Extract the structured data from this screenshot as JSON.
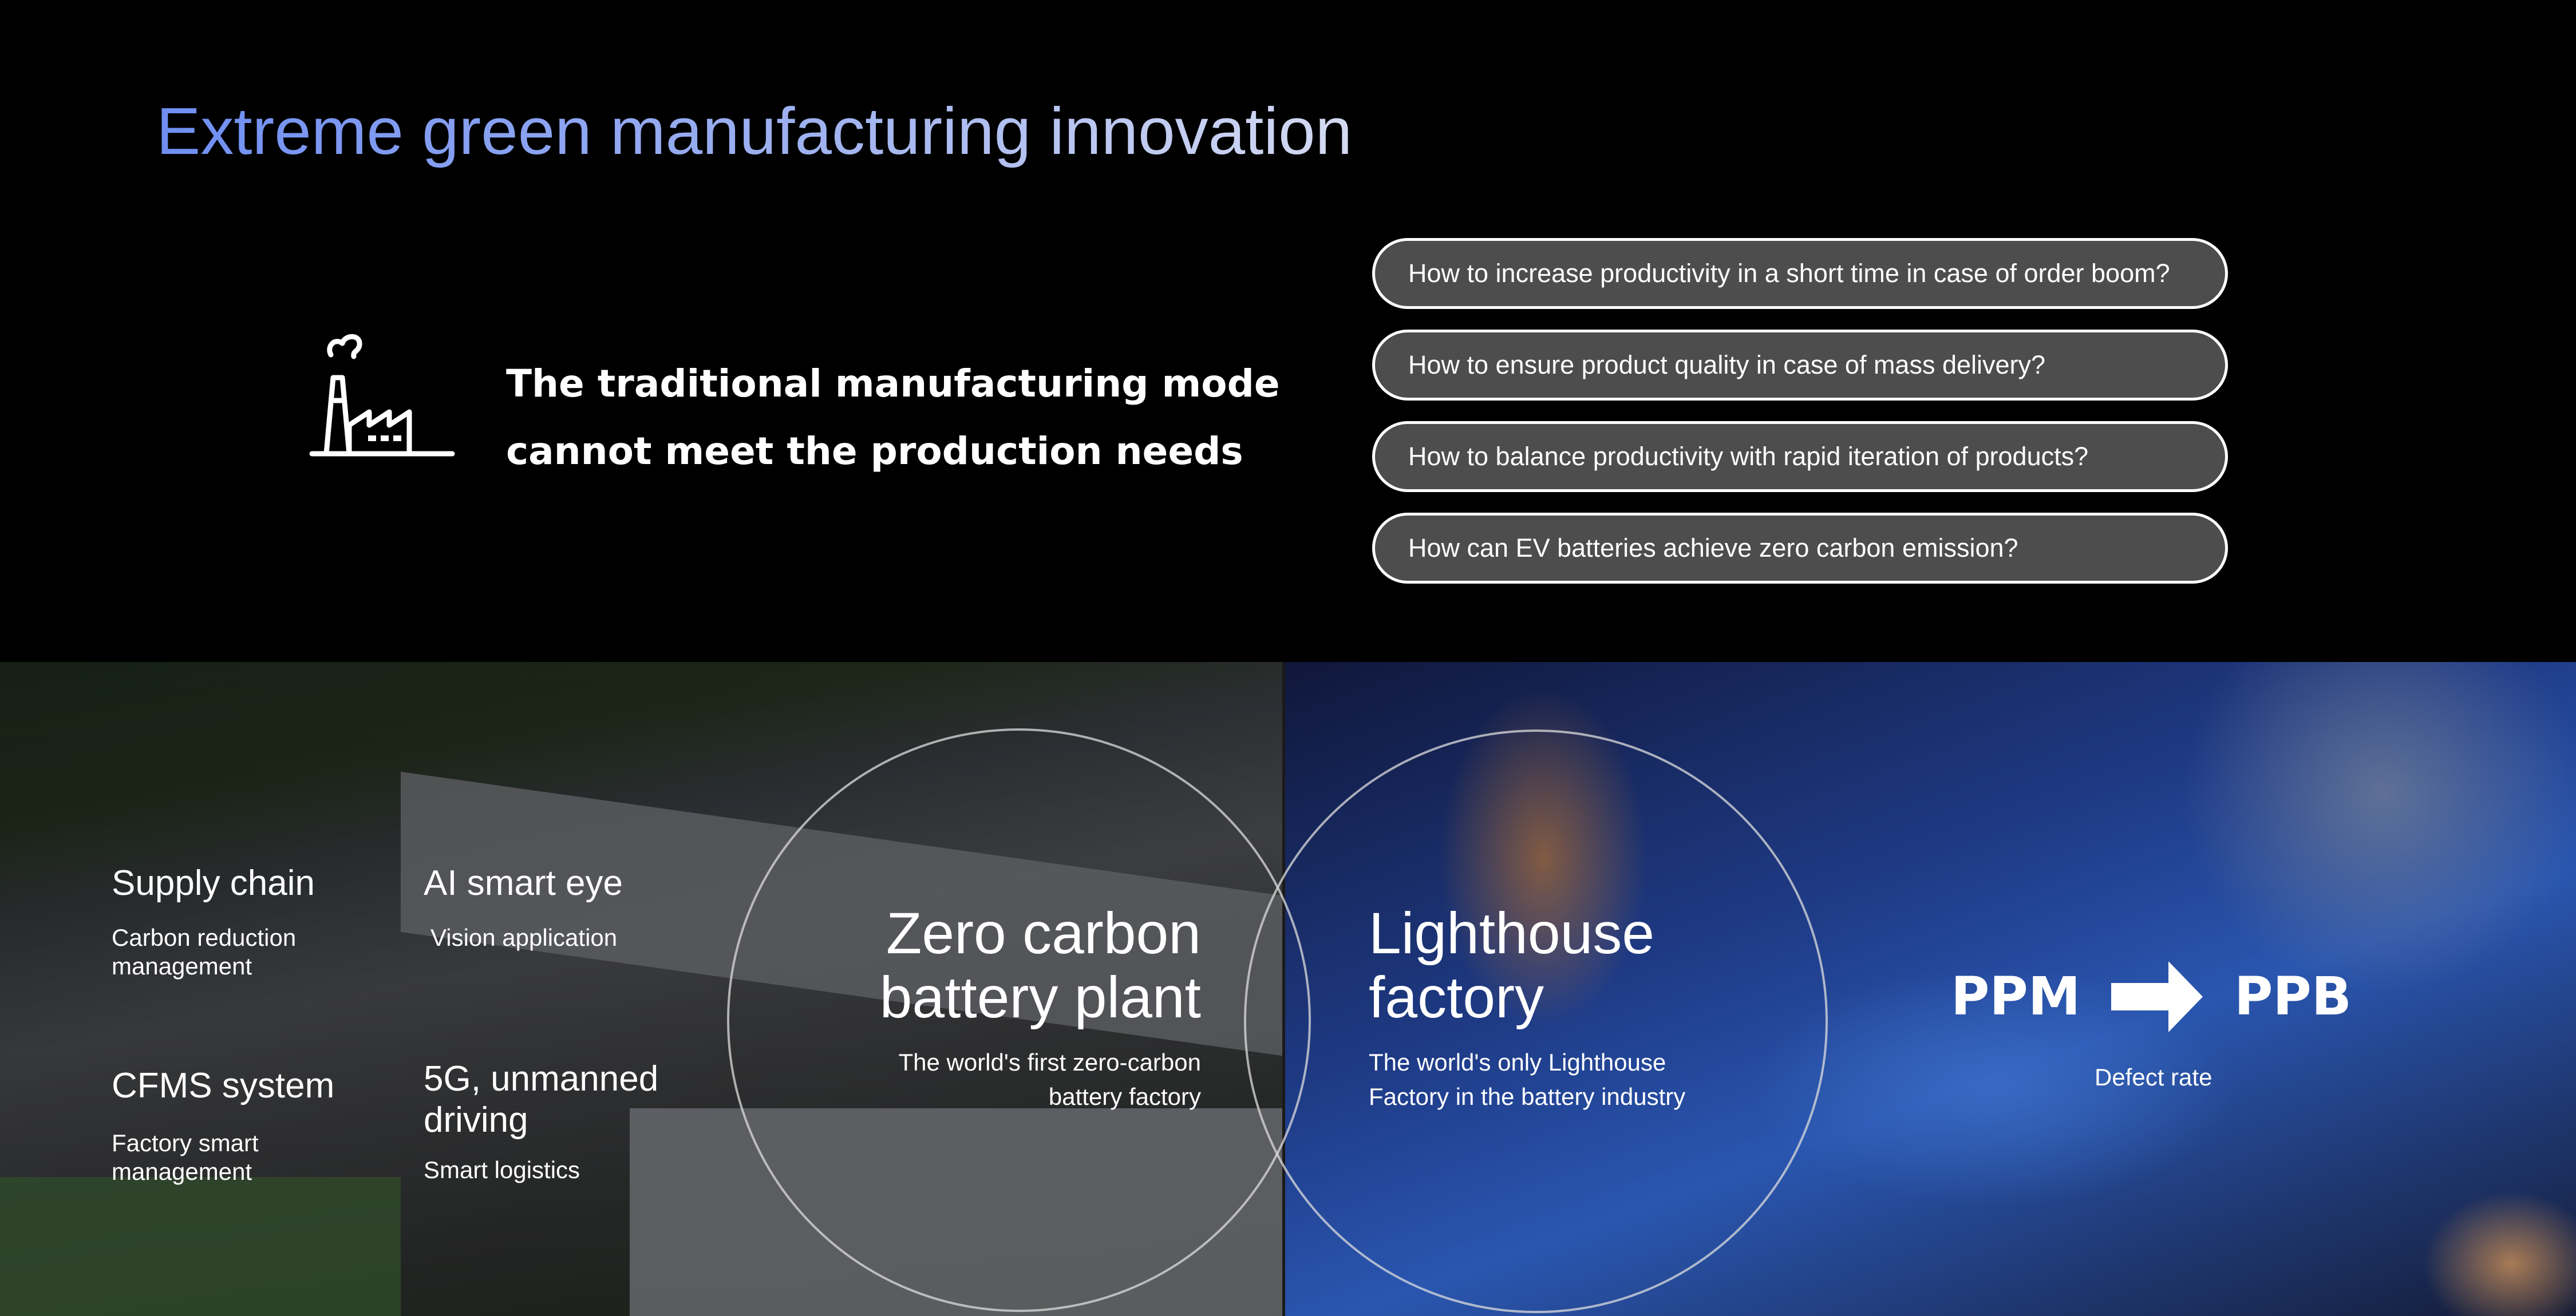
{
  "title": "Extreme green manufacturing innovation",
  "problem": {
    "icon": "factory-icon",
    "line1": "The traditional manufacturing mode",
    "line2": "cannot meet the production needs"
  },
  "questions": [
    "How to increase productivity in a short time in case of order boom?",
    "How to ensure product quality  in case of mass delivery?",
    "How to balance productivity with rapid iteration of products?",
    "How can EV batteries achieve zero carbon emission?"
  ],
  "features": [
    {
      "title": "Supply chain",
      "desc1": "Carbon reduction",
      "desc2": "management"
    },
    {
      "title": "AI smart eye",
      "desc1": "Vision application"
    },
    {
      "title": "CFMS system",
      "desc1": "Factory smart",
      "desc2": "management"
    },
    {
      "title1": "5G, unmanned",
      "title2": "driving",
      "desc1": "Smart logistics"
    }
  ],
  "zero_carbon": {
    "title1": "Zero carbon",
    "title2": "battery plant",
    "desc1": "The world's first zero-carbon",
    "desc2": "battery factory"
  },
  "lighthouse": {
    "title1": "Lighthouse",
    "title2": "factory",
    "desc1": "The world's only Lighthouse",
    "desc2": "Factory in the battery industry"
  },
  "defect": {
    "from": "PPM",
    "arrow_icon": "arrow-right-icon",
    "to": "PPB",
    "label": "Defect rate"
  }
}
